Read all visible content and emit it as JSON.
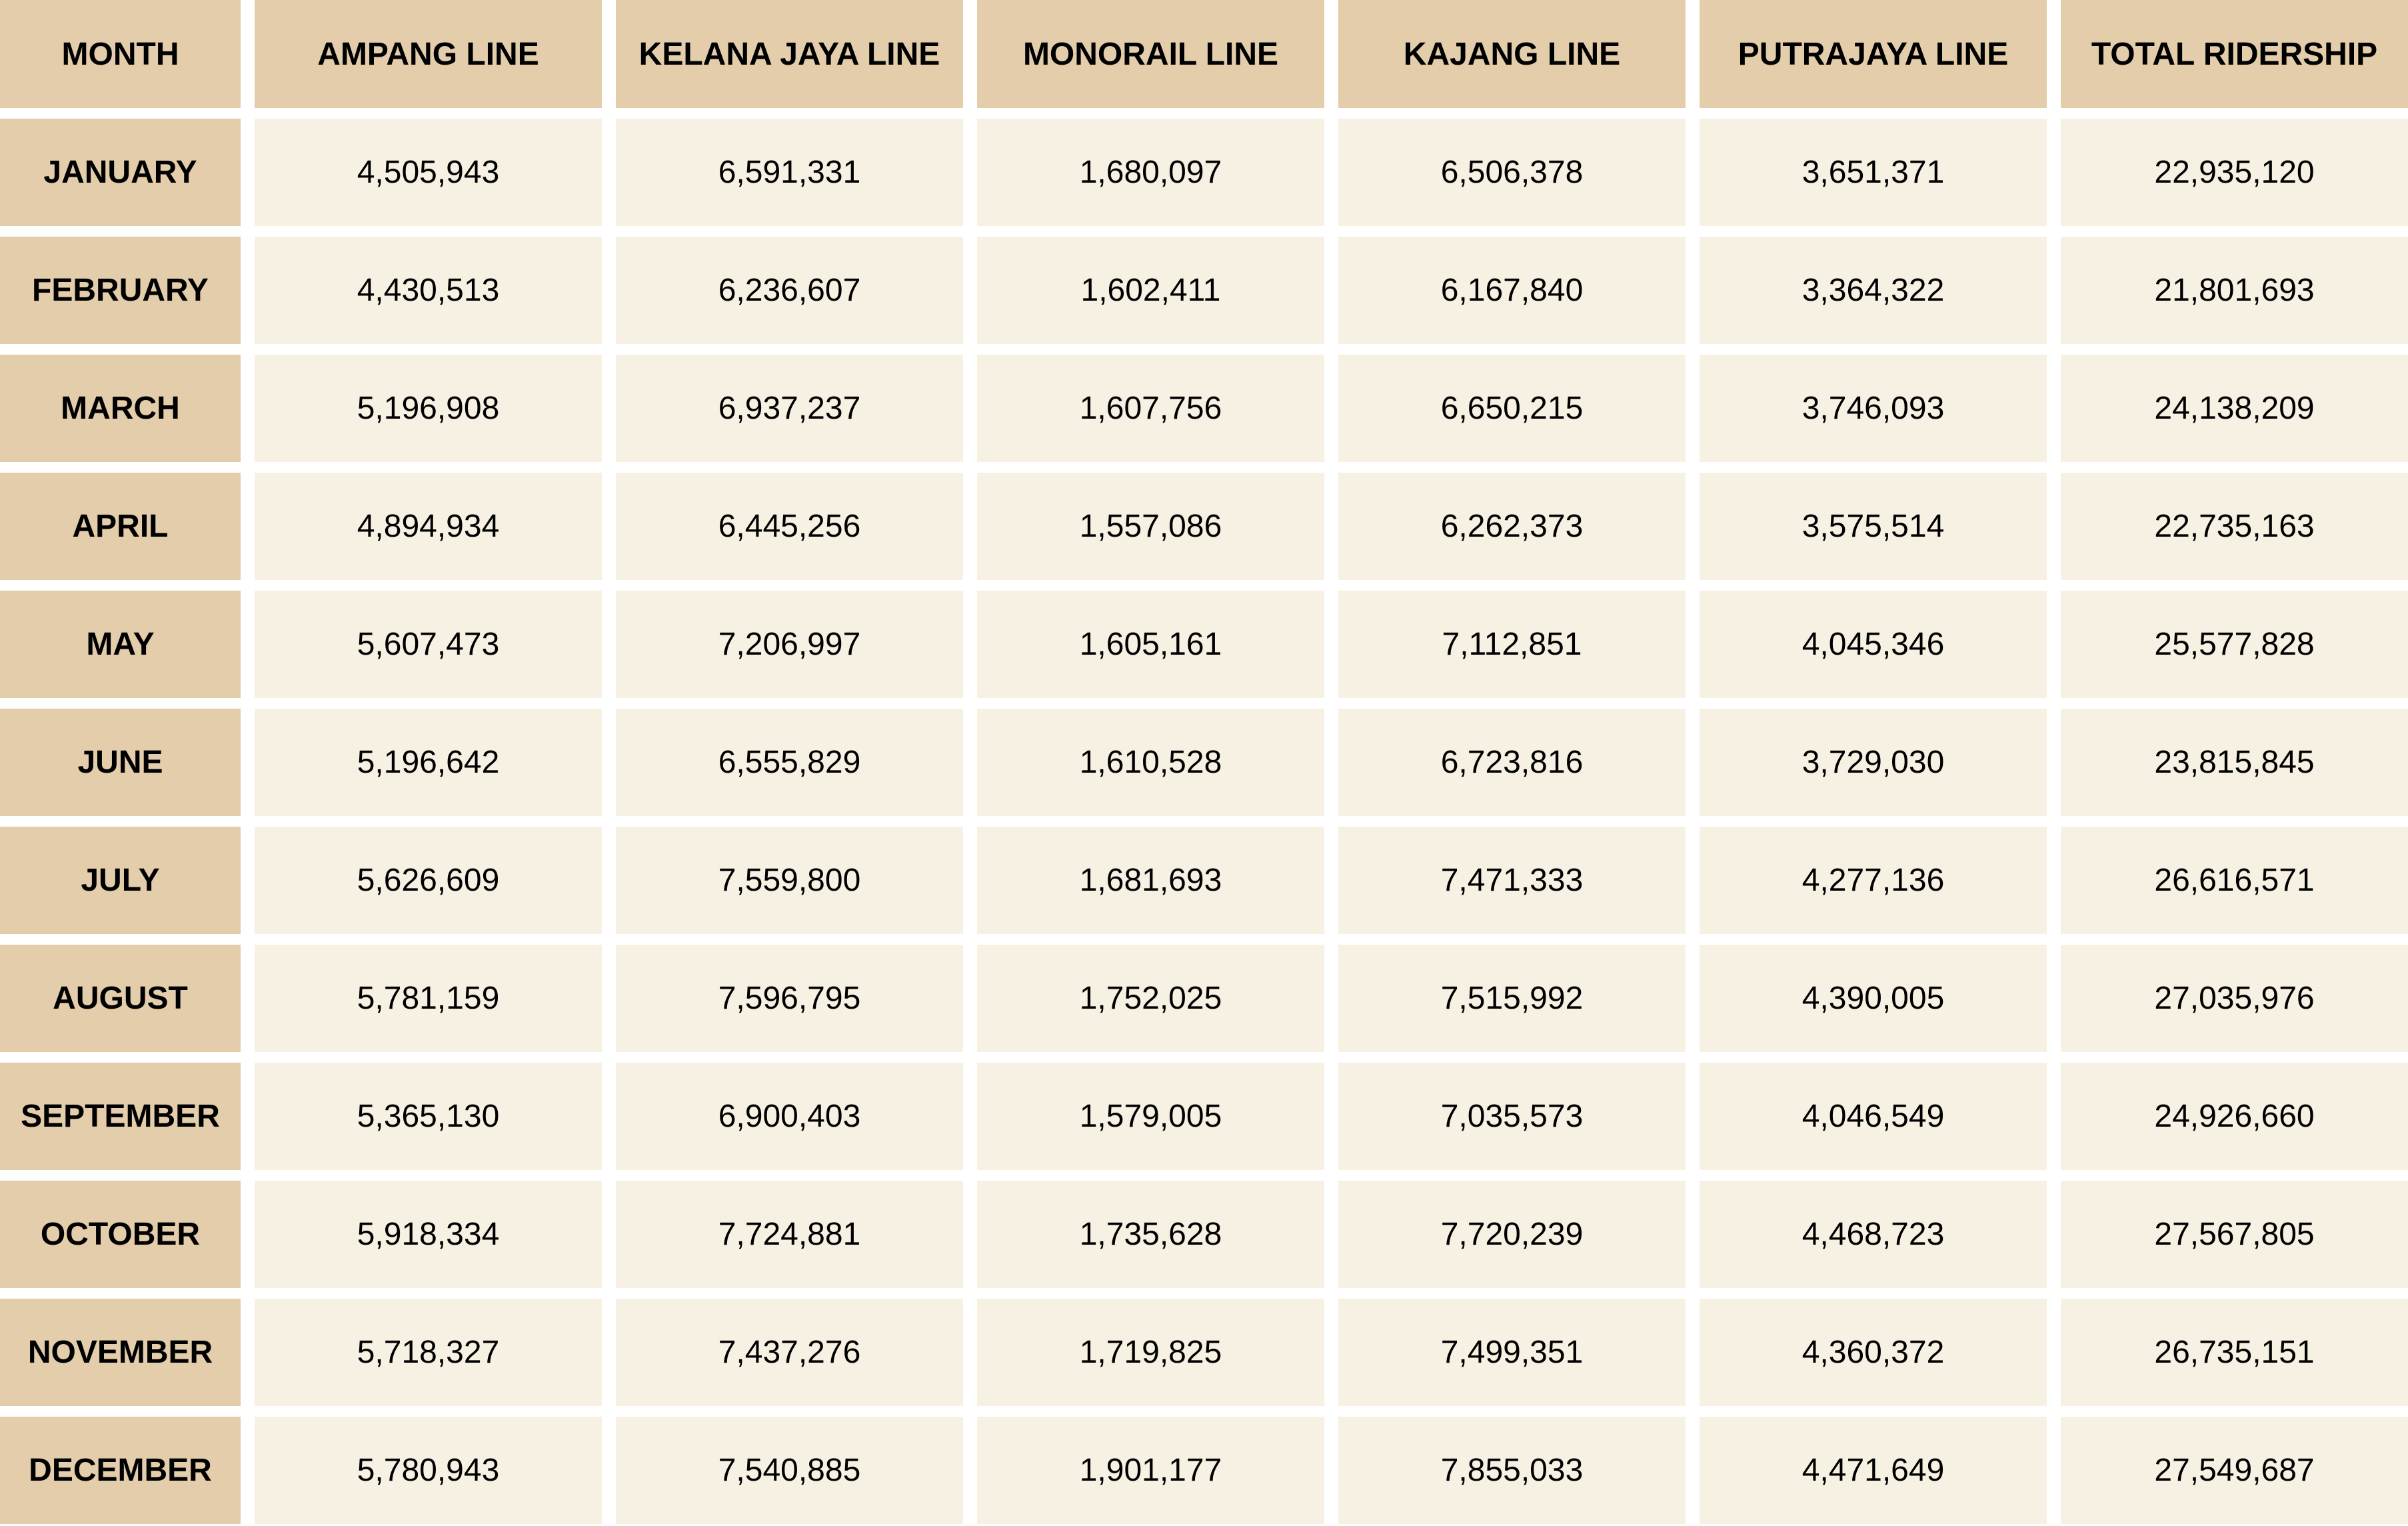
{
  "table": {
    "header": [
      "MONTH",
      "AMPANG LINE",
      "KELANA JAYA LINE",
      "MONORAIL LINE",
      "KAJANG LINE",
      "PUTRAJAYA LINE",
      "TOTAL RIDERSHIP"
    ],
    "rows": [
      [
        "JANUARY",
        "4,505,943",
        "6,591,331",
        "1,680,097",
        "6,506,378",
        "3,651,371",
        "22,935,120"
      ],
      [
        "FEBRUARY",
        "4,430,513",
        "6,236,607",
        "1,602,411",
        "6,167,840",
        "3,364,322",
        "21,801,693"
      ],
      [
        "MARCH",
        "5,196,908",
        "6,937,237",
        "1,607,756",
        "6,650,215",
        "3,746,093",
        "24,138,209"
      ],
      [
        "APRIL",
        "4,894,934",
        "6,445,256",
        "1,557,086",
        "6,262,373",
        "3,575,514",
        "22,735,163"
      ],
      [
        "MAY",
        "5,607,473",
        "7,206,997",
        "1,605,161",
        "7,112,851",
        "4,045,346",
        "25,577,828"
      ],
      [
        "JUNE",
        "5,196,642",
        "6,555,829",
        "1,610,528",
        "6,723,816",
        "3,729,030",
        "23,815,845"
      ],
      [
        "JULY",
        "5,626,609",
        "7,559,800",
        "1,681,693",
        "7,471,333",
        "4,277,136",
        "26,616,571"
      ],
      [
        "AUGUST",
        "5,781,159",
        "7,596,795",
        "1,752,025",
        "7,515,992",
        "4,390,005",
        "27,035,976"
      ],
      [
        "SEPTEMBER",
        "5,365,130",
        "6,900,403",
        "1,579,005",
        "7,035,573",
        "4,046,549",
        "24,926,660"
      ],
      [
        "OCTOBER",
        "5,918,334",
        "7,724,881",
        "1,735,628",
        "7,720,239",
        "4,468,723",
        "27,567,805"
      ],
      [
        "NOVEMBER",
        "5,718,327",
        "7,437,276",
        "1,719,825",
        "7,499,351",
        "4,360,372",
        "26,735,151"
      ],
      [
        "DECEMBER",
        "5,780,943",
        "7,540,885",
        "1,901,177",
        "7,855,033",
        "4,471,649",
        "27,549,687"
      ]
    ]
  }
}
